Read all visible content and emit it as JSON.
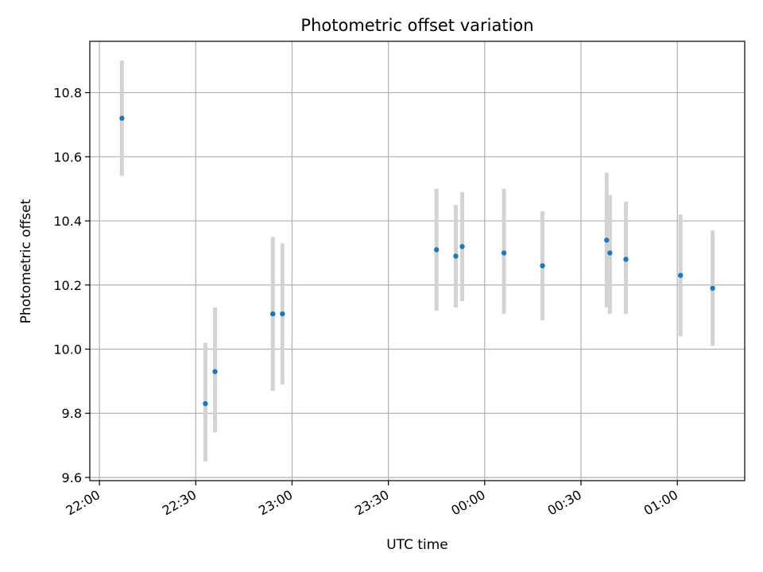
{
  "chart_data": {
    "type": "scatter",
    "title": "Photometric offset variation",
    "xlabel": "UTC time",
    "ylabel": "Photometric offset",
    "x_ticks": [
      "22:00",
      "22:30",
      "23:00",
      "23:30",
      "00:00",
      "00:30",
      "01:00"
    ],
    "y_ticks": [
      "9.6",
      "9.8",
      "10.0",
      "10.2",
      "10.4",
      "10.6",
      "10.8"
    ],
    "xlim": [
      "21:57",
      "01:21"
    ],
    "ylim": [
      9.59,
      10.96
    ],
    "grid": true,
    "colors": {
      "point": "#1f77b4",
      "errorbar": "#d3d3d3",
      "grid": "#b0b0b0",
      "axes": "#000000"
    },
    "series": [
      {
        "points": [
          {
            "time": "22:07",
            "y": 10.72,
            "err_low": 10.54,
            "err_high": 10.9
          },
          {
            "time": "22:33",
            "y": 9.83,
            "err_low": 9.65,
            "err_high": 10.02
          },
          {
            "time": "22:36",
            "y": 9.93,
            "err_low": 9.74,
            "err_high": 10.13
          },
          {
            "time": "22:54",
            "y": 10.11,
            "err_low": 9.87,
            "err_high": 10.35
          },
          {
            "time": "22:57",
            "y": 10.11,
            "err_low": 9.89,
            "err_high": 10.33
          },
          {
            "time": "23:45",
            "y": 10.31,
            "err_low": 10.12,
            "err_high": 10.5
          },
          {
            "time": "23:51",
            "y": 10.29,
            "err_low": 10.13,
            "err_high": 10.45
          },
          {
            "time": "23:53",
            "y": 10.32,
            "err_low": 10.15,
            "err_high": 10.49
          },
          {
            "time": "00:06",
            "y": 10.3,
            "err_low": 10.11,
            "err_high": 10.5
          },
          {
            "time": "00:18",
            "y": 10.26,
            "err_low": 10.09,
            "err_high": 10.43
          },
          {
            "time": "00:38",
            "y": 10.34,
            "err_low": 10.13,
            "err_high": 10.55
          },
          {
            "time": "00:39",
            "y": 10.3,
            "err_low": 10.11,
            "err_high": 10.48
          },
          {
            "time": "00:44",
            "y": 10.28,
            "err_low": 10.11,
            "err_high": 10.46
          },
          {
            "time": "01:01",
            "y": 10.23,
            "err_low": 10.04,
            "err_high": 10.42
          },
          {
            "time": "01:11",
            "y": 10.19,
            "err_low": 10.01,
            "err_high": 10.37
          }
        ]
      }
    ]
  }
}
